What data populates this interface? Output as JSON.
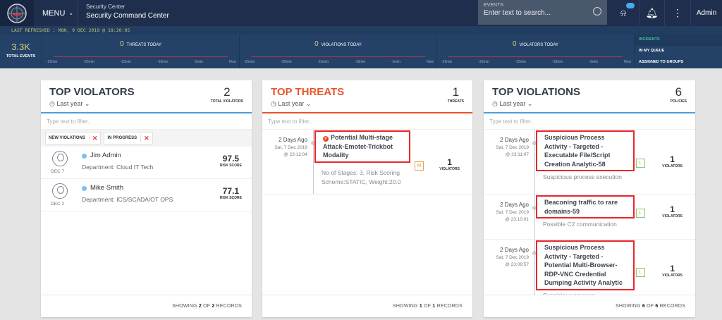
{
  "header": {
    "menu_label": "MENU",
    "app_subtitle": "Security Center",
    "app_title": "Security Command Center",
    "search_label": "EVENTS",
    "search_placeholder": "Enter text to search...",
    "user": "Admin"
  },
  "refresh": "LAST REFRESHED : MON, 9 DEC 2019 @ 18:20:05",
  "stats": {
    "total_events": "3.3K",
    "total_events_label": "TOTAL EVENTS",
    "sparks": [
      {
        "count": "0",
        "label": "THREATS TODAY"
      },
      {
        "count": "0",
        "label": "VIOLATIONS TODAY"
      },
      {
        "count": "0",
        "label": "VIOLATORS TODAY"
      }
    ],
    "ticks": [
      "-25min",
      "-20min",
      "-15min",
      "-10min",
      "-5min",
      "Now"
    ],
    "incidents": [
      "INCIDENTS",
      "IN MY QUEUE",
      "ASSIGNED TO GROUPS"
    ],
    "accent": "#3cc4a0"
  },
  "violators": {
    "title": "TOP VIOLATORS",
    "period": "Last year",
    "count": "2",
    "count_label": "TOTAL VIOLATORS",
    "filter_placeholder": "Type text to filter..",
    "chips": [
      "NEW VIOLATIONS",
      "IN PROGRESS"
    ],
    "rows": [
      {
        "name": "Jim Admin",
        "dept": "Department: Cloud IT Tech",
        "date": "DEC 7",
        "score": "97.5",
        "score_label": "RISK SCORE"
      },
      {
        "name": "Mike Smith",
        "dept": "Department: ICS/SCADA/OT OPS",
        "date": "DEC 2",
        "score": "77.1",
        "score_label": "RISK SCORE"
      }
    ],
    "footer": {
      "pre": "SHOWING ",
      "a": "2",
      "mid": " OF ",
      "b": "2",
      "post": " RECORDS"
    },
    "accent": "#4a9fe0"
  },
  "threats": {
    "title": "TOP THREATS",
    "period": "Last year",
    "count": "1",
    "count_label": "THREATS",
    "filter_placeholder": "Type text to filter..",
    "rows": [
      {
        "ago": "2 Days Ago",
        "date": "Sat, 7 Dec 2019",
        "time": "@ 23:12:04",
        "title": "Potential Multi-stage Attack-Emotet-Trickbot Modality",
        "desc": "No of Stages: 3, Risk Scoring Scheme:STATIC, Weight:20.0",
        "severity": "M",
        "violators": "1",
        "violators_label": "VIOLATORS"
      }
    ],
    "footer": {
      "pre": "SHOWING ",
      "a": "1",
      "mid": " OF ",
      "b": "1",
      "post": " RECORDS"
    },
    "accent": "#e8542a"
  },
  "violations": {
    "title": "TOP VIOLATIONS",
    "period": "Last year",
    "count": "6",
    "count_label": "POLICIES",
    "filter_placeholder": "Type text to filter..",
    "rows": [
      {
        "ago": "2 Days Ago",
        "date": "Sat, 7 Dec 2019",
        "time": "@ 23:11:07",
        "title": "Suspicious Process Activity - Targeted - Executable File/Script Creation Analytic-58",
        "desc": "Suspicious process execution",
        "severity": "L",
        "violators": "1",
        "violators_label": "VIOLATORS"
      },
      {
        "ago": "2 Days Ago",
        "date": "Sat, 7 Dec 2019",
        "time": "@ 23:10:01",
        "title": "Beaconing traffic to rare domains-59",
        "desc": "Possible C2 communication",
        "severity": "L",
        "violators": "1",
        "violators_label": "VIOLATORS"
      },
      {
        "ago": "2 Days Ago",
        "date": "Sat, 7 Dec 2019",
        "time": "@ 23:09:57",
        "title": "Suspicious Process Activity - Targeted - Potential Multi-Browser-RDP-VNC Credential Dumping Activity Analytic",
        "desc": "Suspicious process",
        "severity": "L",
        "violators": "1",
        "violators_label": "VIOLATORS"
      }
    ],
    "footer": {
      "pre": "SHOWING ",
      "a": "6",
      "mid": " OF ",
      "b": "6",
      "post": " RECORDS"
    }
  }
}
